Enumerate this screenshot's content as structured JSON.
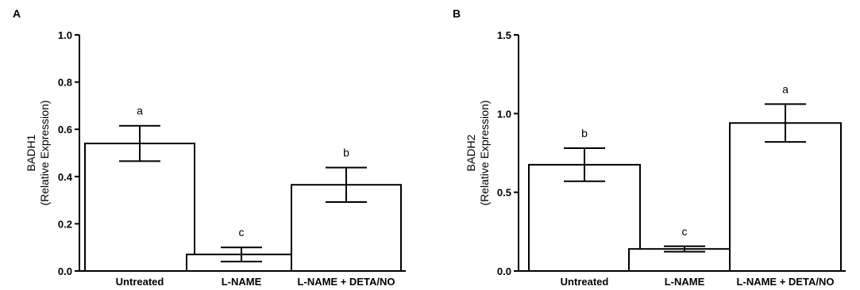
{
  "chart_data": [
    {
      "panel": "A",
      "type": "bar",
      "ylabel": [
        "BADH1",
        "(Relative Expression)"
      ],
      "ylim": [
        0,
        1.0
      ],
      "yticks": [
        "0.0",
        "0.2",
        "0.4",
        "0.6",
        "0.8",
        "1.0"
      ],
      "categories": [
        "Untreated",
        "L-NAME",
        "L-NAME + DETA/NO"
      ],
      "values": [
        0.54,
        0.07,
        0.365
      ],
      "errors": [
        0.075,
        0.03,
        0.073
      ],
      "letters": [
        "a",
        "c",
        "b"
      ],
      "grid": false
    },
    {
      "panel": "B",
      "type": "bar",
      "ylabel": [
        "BADH2",
        "(Relative Expression)"
      ],
      "ylim": [
        0,
        1.5
      ],
      "yticks": [
        "0.0",
        "0.5",
        "1.0",
        "1.5"
      ],
      "categories": [
        "Untreated",
        "L-NAME",
        "L-NAME + DETA/NO"
      ],
      "values": [
        0.675,
        0.14,
        0.94
      ],
      "errors": [
        0.105,
        0.017,
        0.12
      ],
      "letters": [
        "b",
        "c",
        "a"
      ],
      "grid": false
    }
  ]
}
